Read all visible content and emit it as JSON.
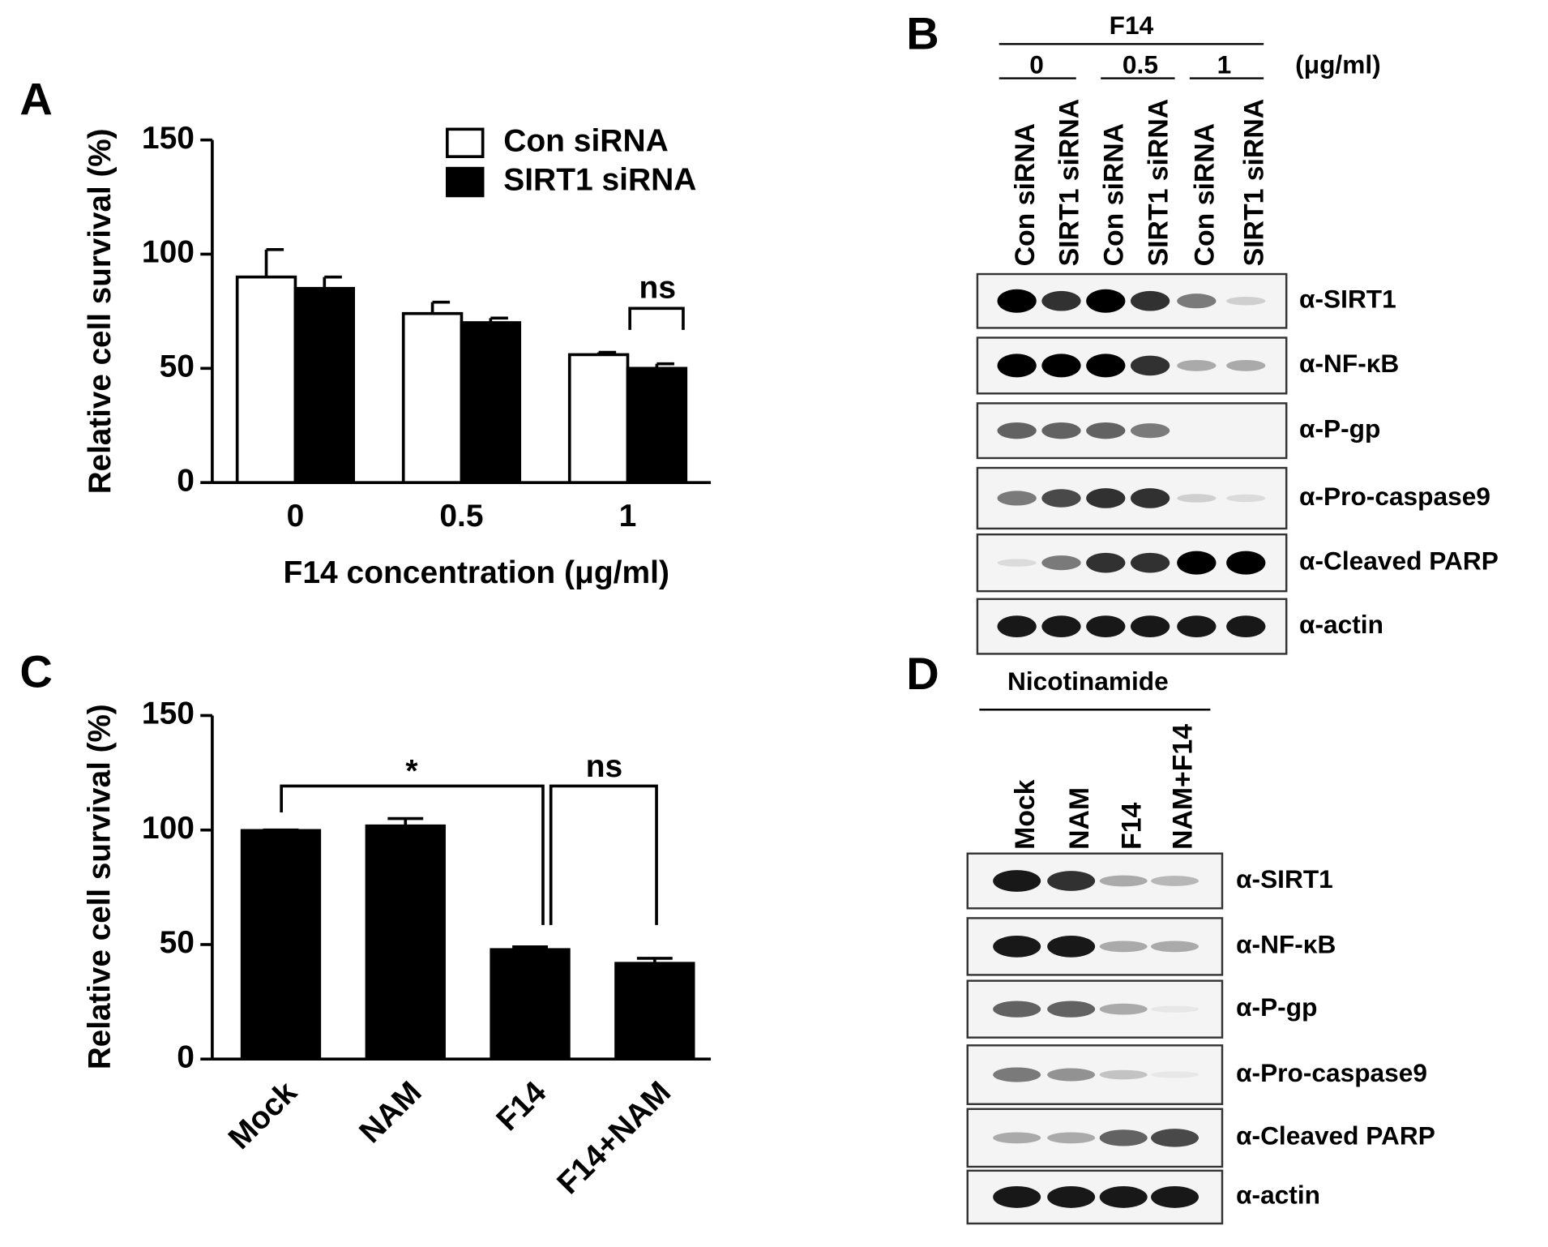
{
  "chart_data": [
    {
      "type": "bar",
      "panel": "A",
      "ylabel": "Relative cell survival (%)",
      "xlabel": "F14 concentration (μg/ml)",
      "categories": [
        "0",
        "0.5",
        "1"
      ],
      "series": [
        {
          "name": "Con siRNA",
          "color": "#ffffff",
          "values": [
            90,
            74,
            56
          ],
          "errors": [
            12,
            5,
            1
          ]
        },
        {
          "name": "SIRT1 siRNA",
          "color": "#000000",
          "values": [
            85,
            70,
            50
          ],
          "errors": [
            5,
            2,
            2
          ]
        }
      ],
      "ylim": [
        0,
        150
      ],
      "yticks": [
        0,
        50,
        100,
        150
      ],
      "legend": "upper right",
      "annotations": [
        "ns"
      ]
    },
    {
      "type": "bar",
      "panel": "C",
      "ylabel": "Relative cell survival (%)",
      "categories": [
        "Mock",
        "NAM",
        "F14",
        "F14+NAM"
      ],
      "values": [
        100,
        102,
        48,
        42
      ],
      "errors": [
        0,
        3,
        1,
        2
      ],
      "color": "#000000",
      "ylim": [
        0,
        150
      ],
      "yticks": [
        0,
        50,
        100,
        150
      ],
      "annotations": [
        "*",
        "ns"
      ]
    }
  ],
  "blots": [
    {
      "panel": "B",
      "header": "F14",
      "unit": "(μg/ml)",
      "doses": [
        "0",
        "0.5",
        "1"
      ],
      "lanes": [
        "Con siRNA",
        "SIRT1 siRNA",
        "Con siRNA",
        "SIRT1 siRNA",
        "Con siRNA",
        "SIRT1 siRNA"
      ],
      "rows": [
        "α-SIRT1",
        "α-NF-κB",
        "α-P-gp",
        "α-Pro-caspase9",
        "α-Cleaved PARP",
        "α-actin"
      ]
    },
    {
      "panel": "D",
      "header": "Nicotinamide",
      "lanes": [
        "Mock",
        "NAM",
        "F14",
        "NAM+F14"
      ],
      "rows": [
        "α-SIRT1",
        "α-NF-κB",
        "α-P-gp",
        "α-Pro-caspase9",
        "α-Cleaved PARP",
        "α-actin"
      ]
    }
  ]
}
